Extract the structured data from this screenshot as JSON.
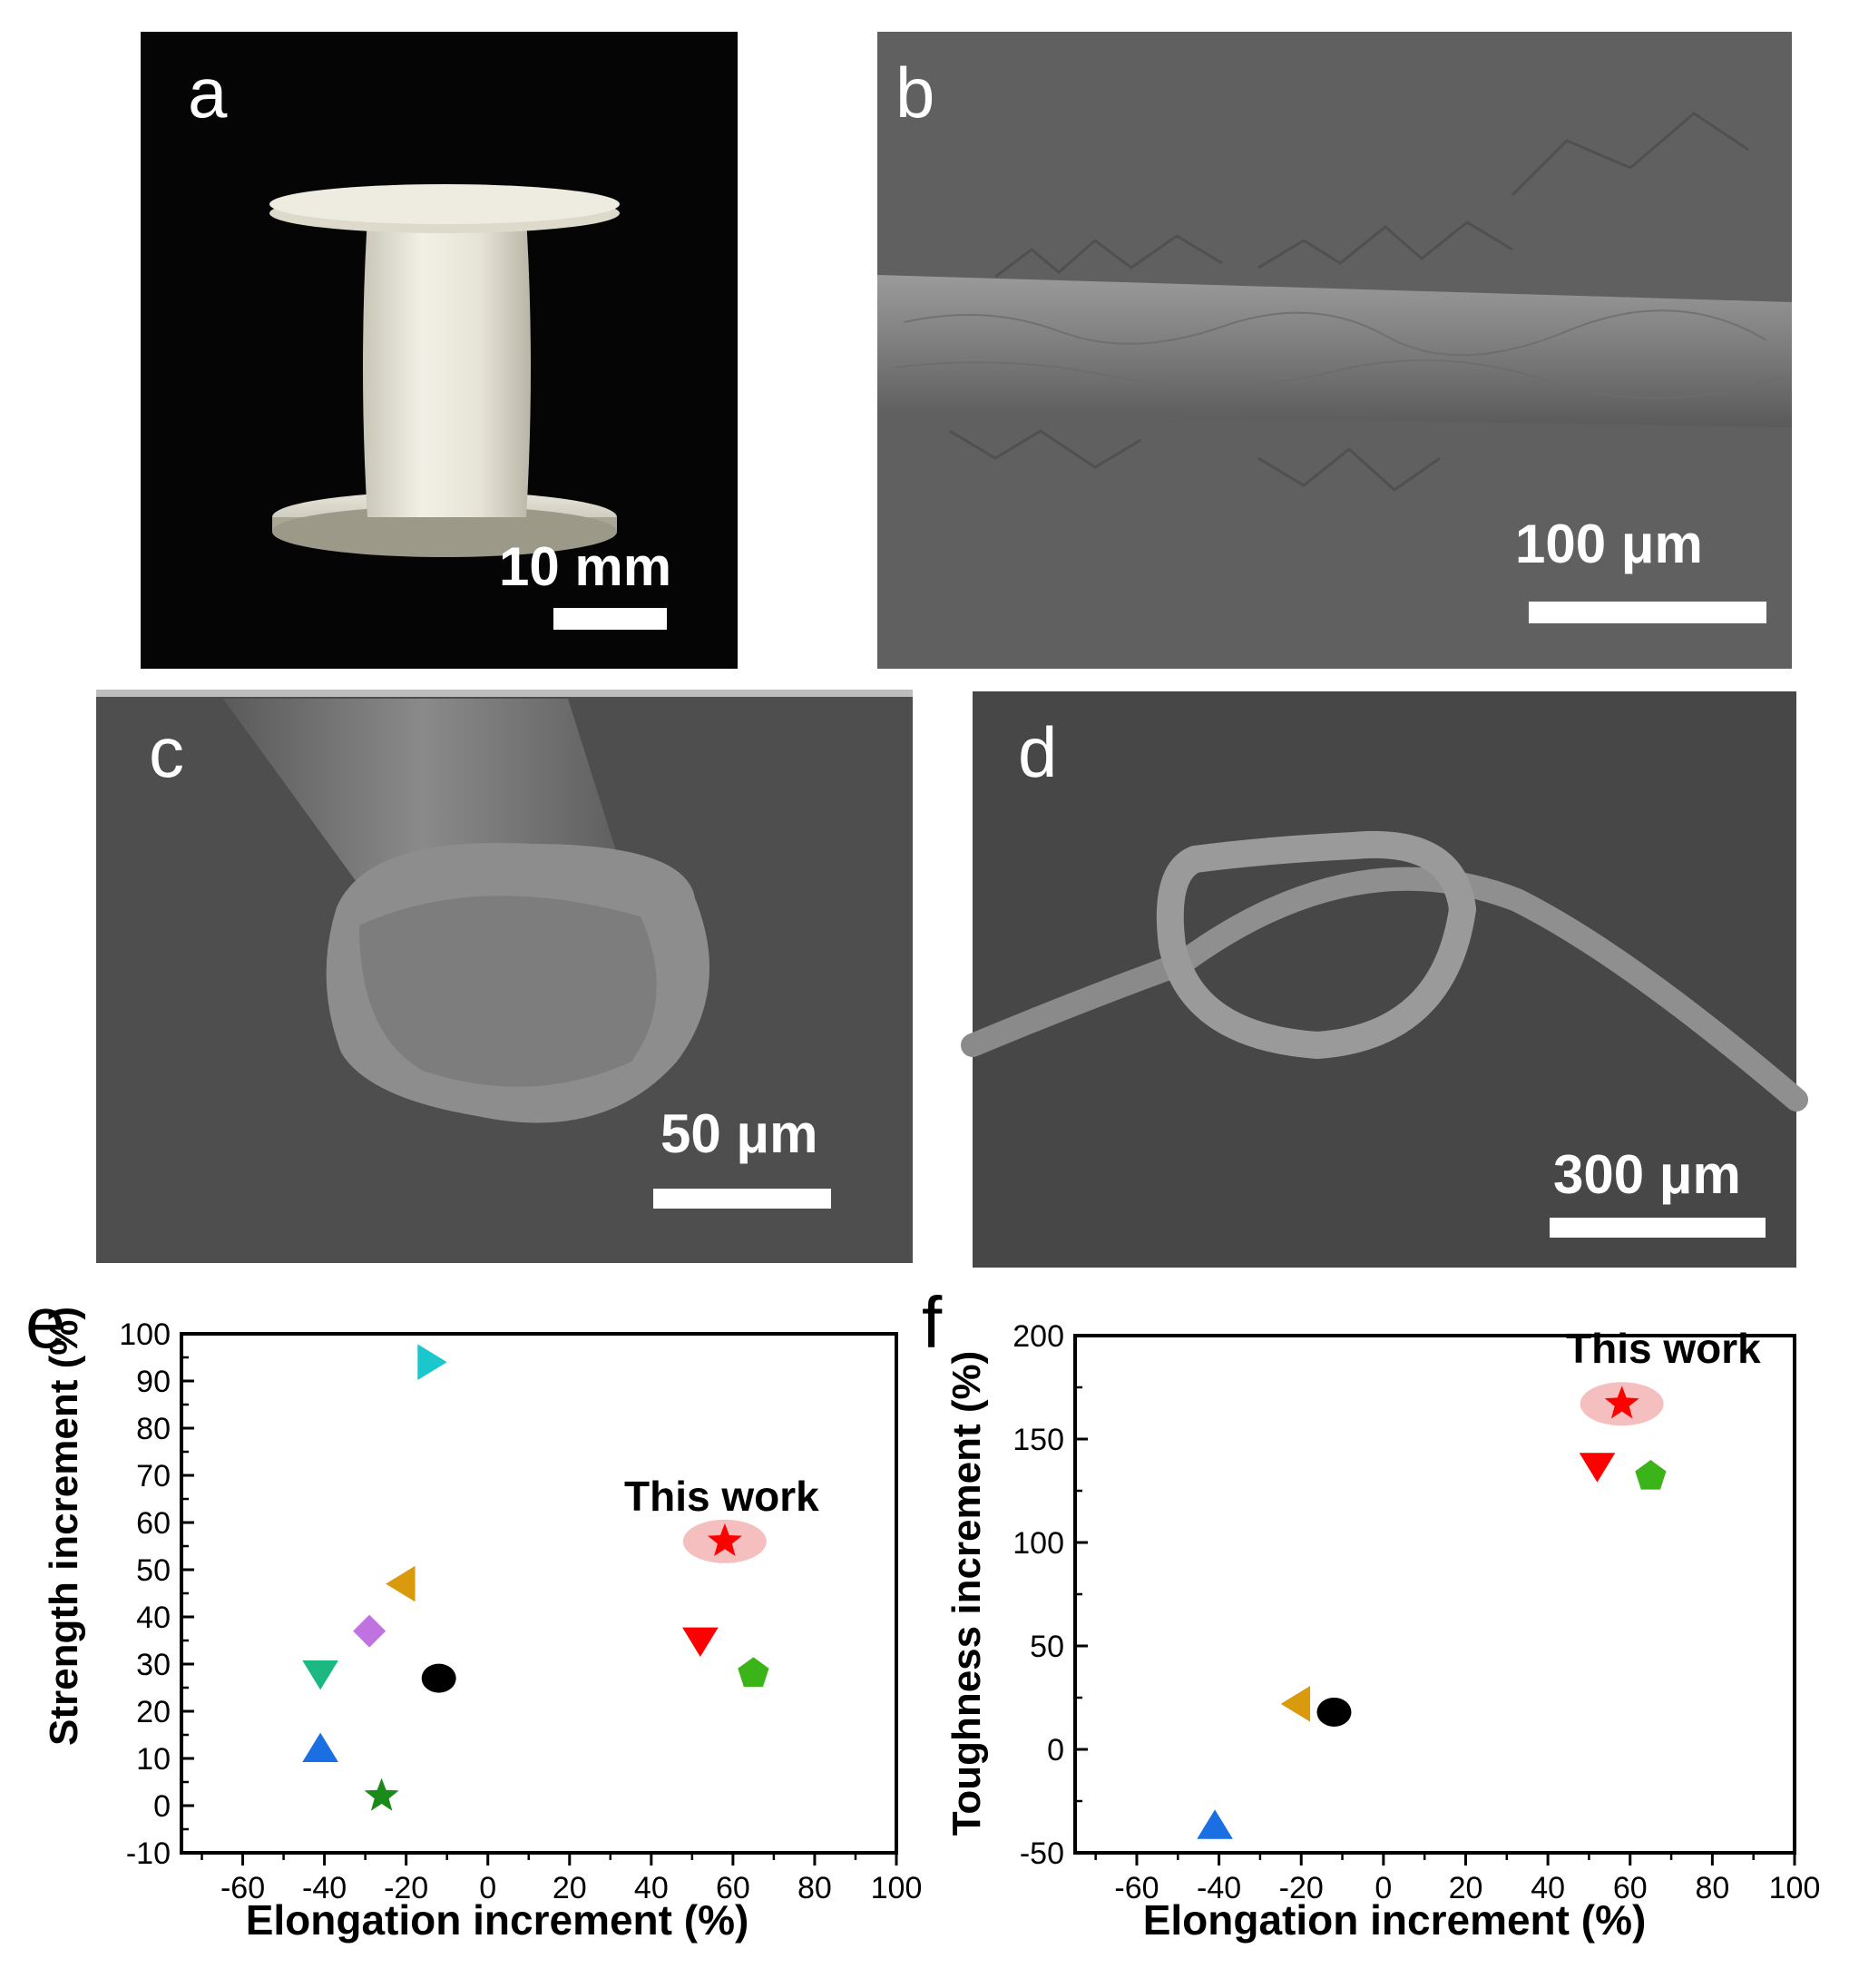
{
  "panels": {
    "a": {
      "letter": "a",
      "scale_label": "10 mm"
    },
    "b": {
      "letter": "b",
      "scale_label": "100 μm"
    },
    "c": {
      "letter": "c",
      "scale_label": "50 μm"
    },
    "d": {
      "letter": "d",
      "scale_label": "300 μm"
    }
  },
  "colors": {
    "cyan": "#19c7cc",
    "orange": "#d99a0e",
    "violet": "#bf72e0",
    "teal": "#1cb882",
    "blue": "#1a6fe3",
    "darkgreen": "#1a8a1a",
    "black": "#000000",
    "red": "#ff0000",
    "green": "#3ab418",
    "highlight": "#f5b8b8"
  },
  "chart_data": [
    {
      "type": "scatter",
      "panel_letter": "e",
      "xlabel": "Elongation increment (%)",
      "ylabel": "Strength increment (%)",
      "xlim": [
        -75,
        100
      ],
      "ylim": [
        -10,
        100
      ],
      "xticks": [
        -60,
        -40,
        -20,
        0,
        20,
        40,
        60,
        80,
        100
      ],
      "yticks": [
        -10,
        0,
        10,
        20,
        30,
        40,
        50,
        60,
        70,
        80,
        90,
        100
      ],
      "annotation": "This work",
      "points": [
        {
          "x": -14,
          "y": 94,
          "marker": "triangle-right",
          "color": "cyan"
        },
        {
          "x": -21,
          "y": 47,
          "marker": "triangle-left",
          "color": "orange"
        },
        {
          "x": -29,
          "y": 37,
          "marker": "diamond",
          "color": "violet"
        },
        {
          "x": -41,
          "y": 28,
          "marker": "triangle-down",
          "color": "teal"
        },
        {
          "x": -41,
          "y": 12,
          "marker": "triangle-up",
          "color": "blue"
        },
        {
          "x": -26,
          "y": 2,
          "marker": "star",
          "color": "darkgreen"
        },
        {
          "x": -12,
          "y": 27,
          "marker": "circle",
          "color": "black"
        },
        {
          "x": 52,
          "y": 35,
          "marker": "triangle-down",
          "color": "red"
        },
        {
          "x": 65,
          "y": 28,
          "marker": "pentagon",
          "color": "green"
        },
        {
          "x": 58,
          "y": 56,
          "marker": "star",
          "color": "red",
          "highlight": true
        }
      ]
    },
    {
      "type": "scatter",
      "panel_letter": "f",
      "xlabel": "Elongation increment (%)",
      "ylabel": "Toughness increment (%)",
      "xlim": [
        -75,
        100
      ],
      "ylim": [
        -50,
        200
      ],
      "xticks": [
        -60,
        -40,
        -20,
        0,
        20,
        40,
        60,
        80,
        100
      ],
      "yticks": [
        -50,
        0,
        50,
        100,
        150,
        200
      ],
      "annotation": "This work",
      "points": [
        {
          "x": -21,
          "y": 22,
          "marker": "triangle-left",
          "color": "orange"
        },
        {
          "x": -12,
          "y": 18,
          "marker": "circle",
          "color": "black"
        },
        {
          "x": -41,
          "y": -37,
          "marker": "triangle-up",
          "color": "blue"
        },
        {
          "x": 52,
          "y": 137,
          "marker": "triangle-down",
          "color": "red"
        },
        {
          "x": 65,
          "y": 132,
          "marker": "pentagon",
          "color": "green"
        },
        {
          "x": 58,
          "y": 167,
          "marker": "star",
          "color": "red",
          "highlight": true
        }
      ]
    }
  ]
}
